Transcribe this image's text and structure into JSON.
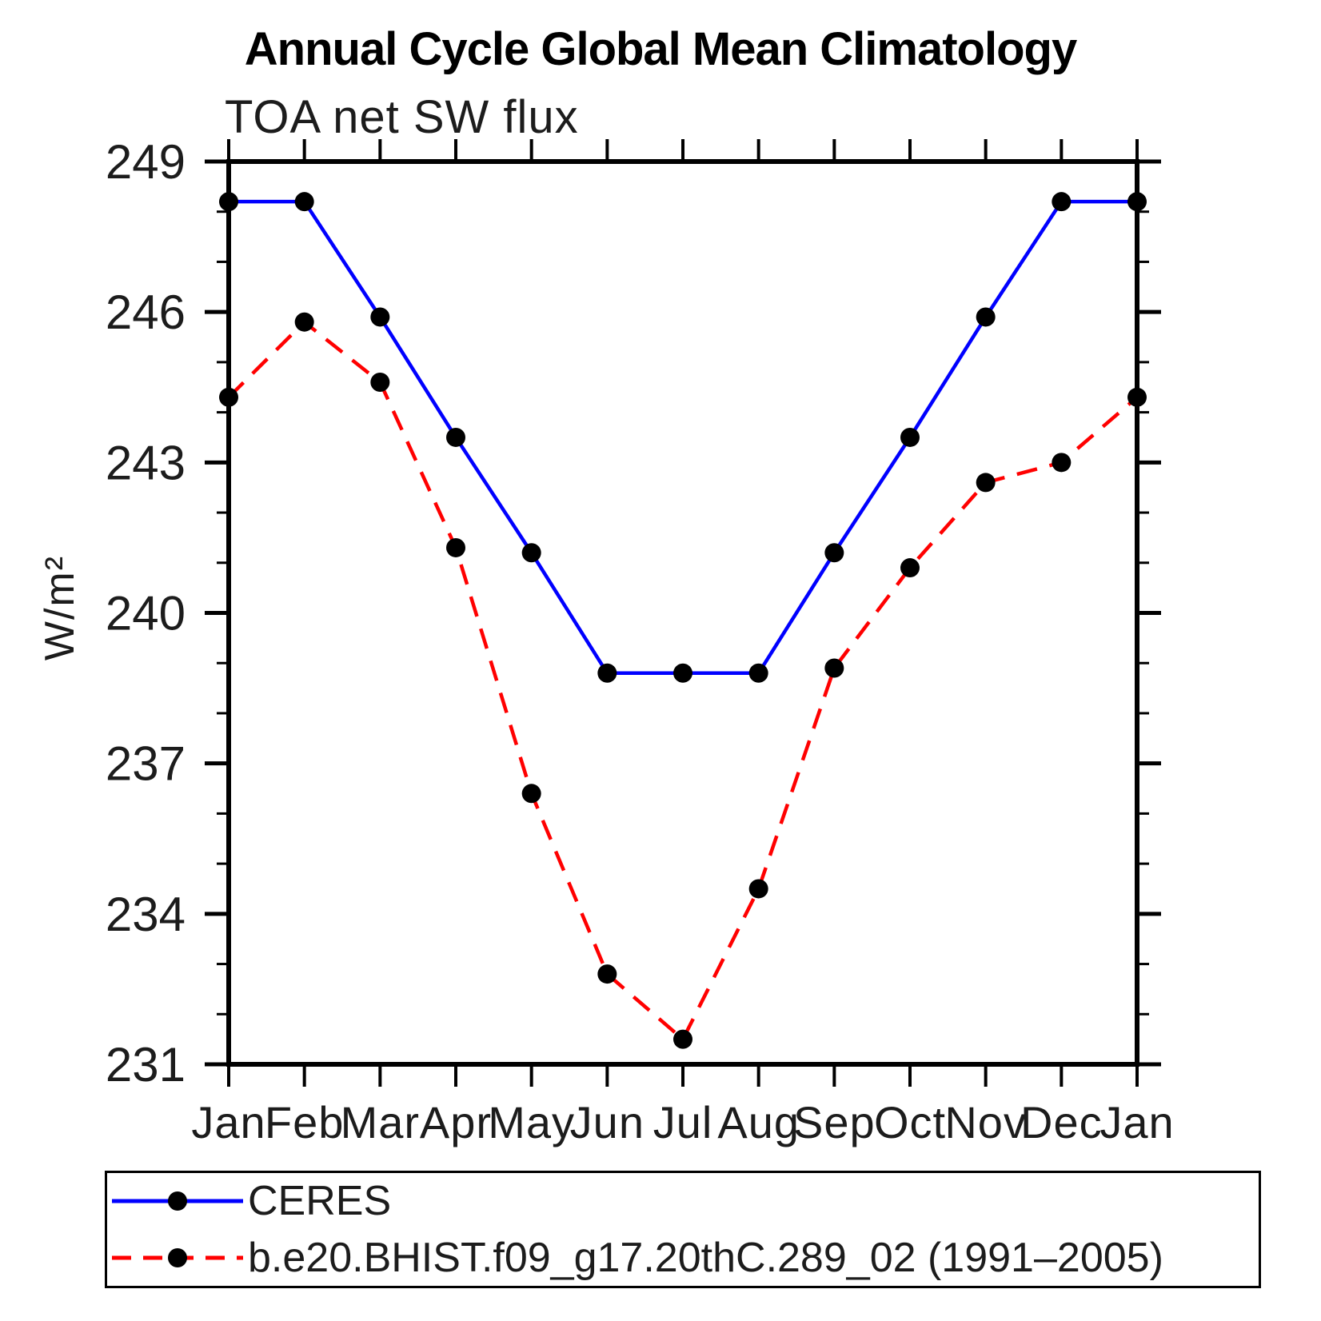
{
  "title": "Annual Cycle Global Mean Climatology",
  "subtitle": "TOA net SW flux",
  "colors": {
    "ceres_line": "#0000ff",
    "model_line": "#ff0000",
    "marker": "#000000",
    "axis": "#000000",
    "text": "#1c1c1c"
  },
  "legend": {
    "entries": [
      {
        "label": "CERES",
        "line_style": "solid",
        "color": "#0000ff",
        "marker": "black-circle"
      },
      {
        "label": "b.e20.BHIST.f09_g17.20thC.289_02 (1991–2005)",
        "line_style": "dashed",
        "color": "#ff0000",
        "marker": "black-circle"
      }
    ]
  },
  "chart_data": {
    "type": "line",
    "title": "Annual Cycle Global Mean Climatology",
    "subtitle": "TOA net SW flux",
    "ylabel": "W/m²",
    "xlabel": "",
    "categories": [
      "Jan",
      "Feb",
      "Mar",
      "Apr",
      "May",
      "Jun",
      "Jul",
      "Aug",
      "Sep",
      "Oct",
      "Nov",
      "Dec",
      "Jan"
    ],
    "series": [
      {
        "name": "CERES",
        "color": "#0000ff",
        "style": "solid",
        "marker": "black-circle",
        "values": [
          248.2,
          248.2,
          245.9,
          243.5,
          241.2,
          238.8,
          238.8,
          238.8,
          241.2,
          243.5,
          245.9,
          248.2,
          248.2
        ]
      },
      {
        "name": "b.e20.BHIST.f09_g17.20thC.289_02 (1991–2005)",
        "color": "#ff0000",
        "style": "dashed",
        "marker": "black-circle",
        "values": [
          244.3,
          245.8,
          244.6,
          241.3,
          236.4,
          232.8,
          231.5,
          234.5,
          238.9,
          240.9,
          242.6,
          243.0,
          244.3
        ]
      }
    ],
    "ylim": [
      231,
      249
    ],
    "ytick_major_step": 3,
    "ytick_minor_step": 1,
    "ytick_major_labels": [
      "231",
      "234",
      "237",
      "240",
      "243",
      "246",
      "249"
    ],
    "grid": false,
    "legend_position": "bottom"
  }
}
